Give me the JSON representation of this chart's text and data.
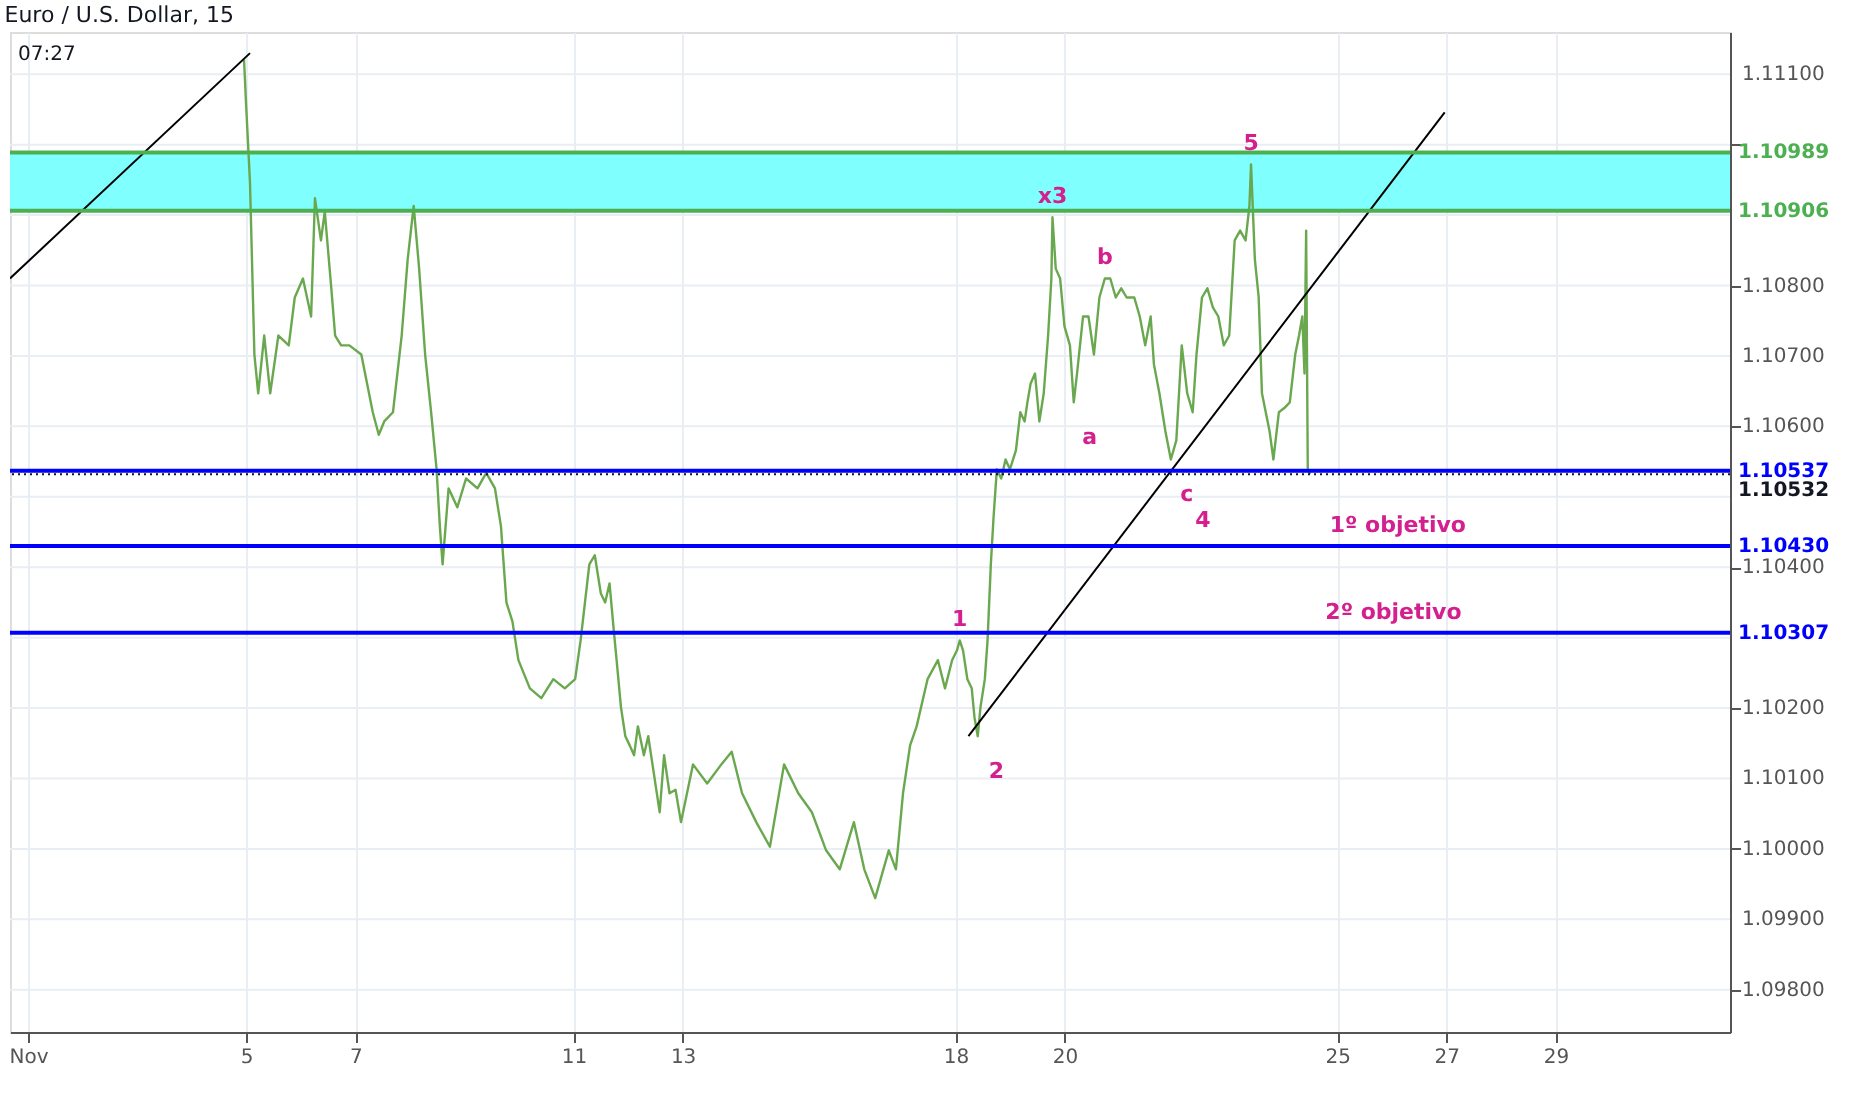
{
  "chart_data": {
    "type": "line",
    "title": "Euro / U.S. Dollar, 15",
    "xlim": [
      0.67,
      32.2
    ],
    "ylim": [
      1.0974,
      1.1116
    ],
    "xticks": [
      {
        "value": 1,
        "label": "Nov"
      },
      5,
      7,
      11,
      13,
      18,
      20,
      25,
      27,
      29
    ],
    "yticks": [
      {
        "value": 1.098,
        "label": "1.09800"
      },
      {
        "value": 1.099,
        "label": "1.09900"
      },
      {
        "value": 1.1,
        "label": "1.10000"
      },
      {
        "value": 1.101,
        "label": "1.10100"
      },
      {
        "value": 1.102,
        "label": "1.10200"
      },
      {
        "value": 1.103,
        "label": null
      },
      {
        "value": 1.104,
        "label": "1.10400"
      },
      {
        "value": 1.105,
        "label": null
      },
      {
        "value": 1.106,
        "label": "1.10600"
      },
      {
        "value": 1.107,
        "label": "1.10700"
      },
      {
        "value": 1.108,
        "label": "1.10800"
      },
      {
        "value": 1.109,
        "label": null
      },
      {
        "value": 1.11,
        "label": null
      },
      {
        "value": 1.111,
        "label": "1.11100"
      }
    ],
    "grid": true,
    "marker": "none",
    "line_style": "solid",
    "series": [
      {
        "color": "#6aa84f",
        "x": [
          4.96,
          5.0,
          5.07,
          5.15,
          5.22,
          5.33,
          5.44,
          5.59,
          5.78,
          5.89,
          6.04,
          6.19,
          6.26,
          6.37,
          6.44,
          6.56,
          6.63,
          6.74,
          6.89,
          7.11,
          7.32,
          7.43,
          7.53,
          7.69,
          7.85,
          7.96,
          8.07,
          8.17,
          8.28,
          8.39,
          8.49,
          8.55,
          8.6,
          8.71,
          8.87,
          9.03,
          9.24,
          9.4,
          9.56,
          9.67,
          9.77,
          9.88,
          9.99,
          10.2,
          10.41,
          10.63,
          10.84,
          11.03,
          11.13,
          11.21,
          11.29,
          11.39,
          11.5,
          11.58,
          11.66,
          11.74,
          11.79,
          11.87,
          11.95,
          12.03,
          12.11,
          12.18,
          12.29,
          12.37,
          12.5,
          12.58,
          12.66,
          12.76,
          12.87,
          12.97,
          13.19,
          13.45,
          13.71,
          13.9,
          14.09,
          14.35,
          14.6,
          14.86,
          15.12,
          15.37,
          15.63,
          15.88,
          16.14,
          16.33,
          16.53,
          16.78,
          16.91,
          17.04,
          17.17,
          17.29,
          17.49,
          17.68,
          17.81,
          17.94,
          18.03,
          18.08,
          18.14,
          18.22,
          18.3,
          18.35,
          18.41,
          18.46,
          18.54,
          18.59,
          18.65,
          18.7,
          18.76,
          18.84,
          18.92,
          19.0,
          19.11,
          19.19,
          19.27,
          19.32,
          19.38,
          19.46,
          19.54,
          19.62,
          19.7,
          19.76,
          19.78,
          19.84,
          19.92,
          20.0,
          20.1,
          20.17,
          20.23,
          20.34,
          20.44,
          20.54,
          20.64,
          20.74,
          20.84,
          20.94,
          21.04,
          21.14,
          21.28,
          21.38,
          21.48,
          21.58,
          21.64,
          21.74,
          21.85,
          21.95,
          22.05,
          22.15,
          22.25,
          22.35,
          22.42,
          22.52,
          22.62,
          22.72,
          22.82,
          22.92,
          23.02,
          23.12,
          23.22,
          23.32,
          23.39,
          23.42,
          23.49,
          23.56,
          23.62,
          23.69,
          23.76,
          23.83,
          23.93,
          24.03,
          24.13,
          24.23,
          24.3,
          24.36,
          24.4,
          24.43,
          24.46,
          24.5
        ],
        "values": [
          1.11121,
          1.11054,
          1.10945,
          1.10702,
          1.10647,
          1.10729,
          1.10647,
          1.10729,
          1.10715,
          1.10783,
          1.1081,
          1.10756,
          1.10924,
          1.10864,
          1.10905,
          1.10796,
          1.10729,
          1.10715,
          1.10715,
          1.10702,
          1.1062,
          1.10588,
          1.10607,
          1.1062,
          1.10729,
          1.10837,
          1.10913,
          1.10824,
          1.10702,
          1.1062,
          1.10539,
          1.10458,
          1.10404,
          1.10512,
          1.10485,
          1.10526,
          1.10512,
          1.10534,
          1.10512,
          1.10458,
          1.1035,
          1.10323,
          1.10268,
          1.10228,
          1.10214,
          1.10241,
          1.10228,
          1.10241,
          1.10296,
          1.1035,
          1.10404,
          1.10417,
          1.10363,
          1.1035,
          1.10377,
          1.10309,
          1.10268,
          1.10201,
          1.1016,
          1.10147,
          1.10133,
          1.10174,
          1.10133,
          1.1016,
          1.10093,
          1.10052,
          1.10133,
          1.10079,
          1.10084,
          1.10038,
          1.1012,
          1.10093,
          1.1012,
          1.10138,
          1.10079,
          1.10038,
          1.10003,
          1.1012,
          1.10079,
          1.10052,
          1.09998,
          1.09971,
          1.10038,
          1.09971,
          1.0993,
          1.09998,
          1.09971,
          1.10079,
          1.10147,
          1.10174,
          1.10241,
          1.10268,
          1.10228,
          1.10268,
          1.10282,
          1.10296,
          1.10282,
          1.10241,
          1.10228,
          1.10187,
          1.1016,
          1.10201,
          1.10241,
          1.10296,
          1.10404,
          1.10471,
          1.10539,
          1.10526,
          1.10553,
          1.10539,
          1.10566,
          1.1062,
          1.10607,
          1.10634,
          1.10661,
          1.10675,
          1.10607,
          1.10647,
          1.10729,
          1.1081,
          1.10897,
          1.10824,
          1.1081,
          1.10742,
          1.10715,
          1.10634,
          1.10675,
          1.10756,
          1.10756,
          1.10702,
          1.10783,
          1.1081,
          1.1081,
          1.10783,
          1.10796,
          1.10783,
          1.10783,
          1.10756,
          1.10715,
          1.10756,
          1.10688,
          1.10647,
          1.10593,
          1.10553,
          1.1058,
          1.10715,
          1.10647,
          1.1062,
          1.10702,
          1.10783,
          1.10796,
          1.10769,
          1.10756,
          1.10715,
          1.10729,
          1.10864,
          1.10878,
          1.10864,
          1.10913,
          1.10972,
          1.10837,
          1.10783,
          1.10647,
          1.1062,
          1.10593,
          1.10553,
          1.1062,
          1.10626,
          1.10634,
          1.10702,
          1.10729,
          1.10756,
          1.10675,
          1.10878,
          1.10539,
          1.10532
        ]
      },
      {
        "color": "#000000",
        "type": "line",
        "x": [
          0.67,
          5.07
        ],
        "values": [
          1.1081,
          1.1113
        ]
      },
      {
        "color": "#000000",
        "type": "line",
        "x": [
          18.24,
          26.97
        ],
        "values": [
          1.1016,
          1.11046
        ]
      }
    ],
    "bands": [
      {
        "axis": "y",
        "from": 1.10906,
        "to": 1.10989,
        "color": "#80ffff"
      }
    ],
    "ref_lines": [
      {
        "axis": "y",
        "value": 1.10989,
        "label": "1.10989",
        "color": "#4caf50",
        "line_style": "solid"
      },
      {
        "axis": "y",
        "value": 1.10906,
        "label": "1.10906",
        "color": "#4caf50",
        "line_style": "solid"
      },
      {
        "axis": "y",
        "value": 1.10537,
        "label": "1.10537",
        "color": "#0000ff",
        "line_style": "solid"
      },
      {
        "axis": "y",
        "value": 1.10532,
        "label": "1.10532",
        "color": "#131722",
        "line_style": "dotted"
      },
      {
        "axis": "y",
        "value": 1.1043,
        "label": "1.10430",
        "color": "#0000ff",
        "line_style": "solid"
      },
      {
        "axis": "y",
        "value": 1.10307,
        "label": "1.10307",
        "color": "#0000ff",
        "line_style": "solid"
      }
    ],
    "annotations": [
      {
        "text": "x3",
        "x": 19.78,
        "y": 1.10897
      },
      {
        "text": "b",
        "x": 20.74,
        "y": 1.1081
      },
      {
        "text": "5",
        "x": 23.42,
        "y": 1.10972
      },
      {
        "text": "a",
        "x": 20.17,
        "y": 1.10634
      },
      {
        "text": "c",
        "x": 21.95,
        "y": 1.10553
      },
      {
        "text": "4",
        "x": 21.95,
        "y": 1.10553
      },
      {
        "text": "1",
        "x": 18.08,
        "y": 1.10296
      },
      {
        "text": "2",
        "x": 18.46,
        "y": 1.1016
      },
      {
        "text": "1º objetivo",
        "x": 26.11,
        "y": 1.1043
      },
      {
        "text": "2º objetivo",
        "x": 26.03,
        "y": 1.10307
      },
      "07:27"
    ]
  }
}
